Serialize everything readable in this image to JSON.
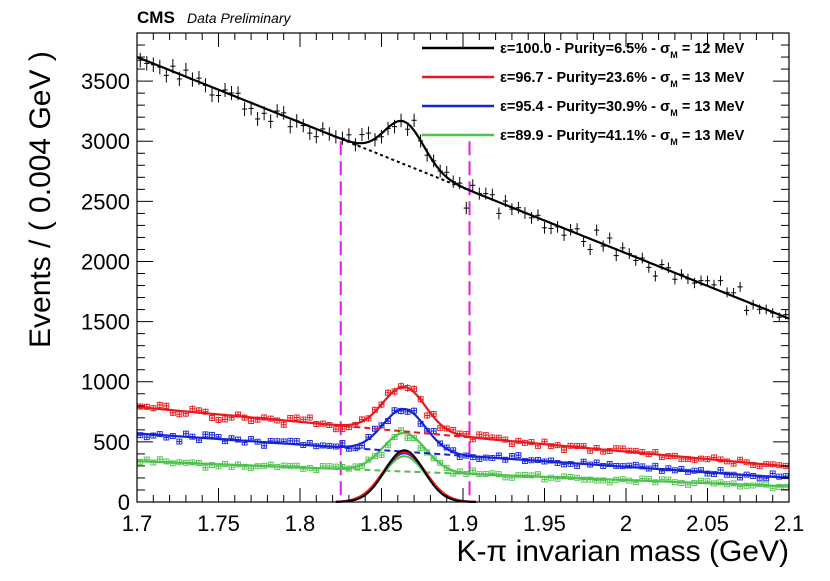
{
  "header": {
    "experiment": "CMS",
    "status": "Data Preliminary"
  },
  "chart_data": {
    "type": "scatter",
    "xlabel": "K-π invarian mass (GeV)",
    "ylabel": "Events / ( 0.004 GeV )",
    "xlim": [
      1.7,
      2.1
    ],
    "ylim": [
      0,
      3900
    ],
    "x_ticks": [
      1.7,
      1.75,
      1.8,
      1.85,
      1.9,
      1.95,
      2.0,
      2.05,
      2.1
    ],
    "x_tick_labels": [
      "1.7",
      "1.75",
      "1.8",
      "1.85",
      "1.9",
      "1.95",
      "2",
      "2.05",
      "2.1"
    ],
    "y_ticks": [
      0,
      500,
      1000,
      1500,
      2000,
      2500,
      3000,
      3500
    ],
    "y_tick_labels": [
      "0",
      "500",
      "1000",
      "1500",
      "2000",
      "2500",
      "3000",
      "3500"
    ],
    "bin_width": 0.004,
    "legend_position": "top-right",
    "signal_window": [
      1.825,
      1.904
    ],
    "series": [
      {
        "legend": {
          "prefix": "ε=100.0 - Purity=6.5% -  ",
          "sigma_symbol": "σ",
          "sigma_sub": "M",
          "sigma_value": "= 12 MeV"
        },
        "color": "#000000",
        "marker": "cross",
        "background": {
          "start": 3700,
          "end": 1525
        },
        "signal": {
          "mean": 1.864,
          "sigma": 0.012,
          "amplitude": 355
        },
        "signal_only_curve": {
          "amplitude": 430
        },
        "show_dashed_background": true
      },
      {
        "legend": {
          "prefix": "ε=96.7 - Purity=23.6% -  ",
          "sigma_symbol": "σ",
          "sigma_sub": "M",
          "sigma_value": "= 13 MeV"
        },
        "color": "#e8191c",
        "marker": "square",
        "background": {
          "start": 790,
          "end": 295
        },
        "signal": {
          "mean": 1.864,
          "sigma": 0.013,
          "amplitude": 370
        },
        "signal_only_curve": {
          "amplitude": 415
        },
        "show_dashed_background": true
      },
      {
        "legend": {
          "prefix": "ε=95.4 - Purity=30.9% -  ",
          "sigma_symbol": "σ",
          "sigma_sub": "M",
          "sigma_value": "= 13 MeV"
        },
        "color": "#1522d8",
        "marker": "square",
        "background": {
          "start": 570,
          "end": 200
        },
        "signal": {
          "mean": 1.864,
          "sigma": 0.013,
          "amplitude": 355
        },
        "signal_only_curve": {
          "amplitude": 405
        },
        "show_dashed_background": true
      },
      {
        "legend": {
          "prefix": "ε=89.9 - Purity=41.1% -  ",
          "sigma_symbol": "σ",
          "sigma_sub": "M",
          "sigma_value": "= 13 MeV"
        },
        "color": "#4cc24a",
        "marker": "square",
        "background": {
          "start": 340,
          "end": 130
        },
        "signal": {
          "mean": 1.864,
          "sigma": 0.013,
          "amplitude": 320
        },
        "signal_only_curve": {
          "amplitude": 380
        },
        "show_dashed_background": true
      }
    ],
    "window_line_color": "#e61ae6"
  }
}
